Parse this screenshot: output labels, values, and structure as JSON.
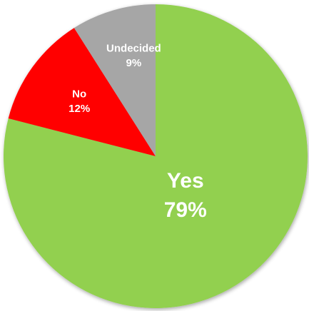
{
  "chart_data": {
    "type": "pie",
    "title": "",
    "start_angle_deg": 0,
    "direction": "clockwise",
    "slices": [
      {
        "category": "Yes",
        "value": 79,
        "value_label": "79%",
        "color": "#92d050"
      },
      {
        "category": "No",
        "value": 12,
        "value_label": "12%",
        "color": "#ff0000"
      },
      {
        "category": "Undecided",
        "value": 9,
        "value_label": "9%",
        "color": "#a6a6a6"
      }
    ],
    "legend": "none",
    "data_labels": "inside"
  }
}
